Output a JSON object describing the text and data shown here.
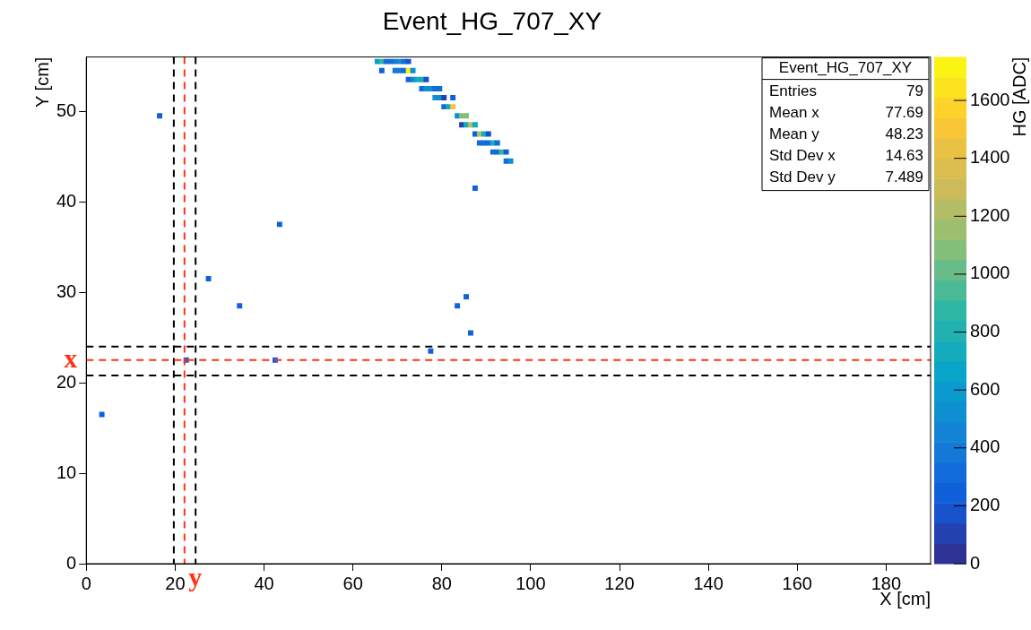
{
  "chart_data": {
    "type": "scatter",
    "title": "Event_HG_707_XY",
    "xlabel": "X [cm]",
    "ylabel": "Y [cm]",
    "clabel": "HG [ADC]",
    "xlim": [
      0,
      190
    ],
    "xticks": [
      0,
      20,
      40,
      60,
      80,
      100,
      120,
      140,
      160,
      180
    ],
    "ylim": [
      0,
      56
    ],
    "yticks": [
      0,
      10,
      20,
      30,
      40,
      50
    ],
    "clim": [
      0,
      1750
    ],
    "cticks": [
      0,
      200,
      400,
      600,
      800,
      1000,
      1200,
      1400,
      1600
    ],
    "grid": false,
    "legend": false,
    "marker": "square",
    "annotations": [
      "Event_HG_707_XY",
      "Entries 79",
      "Mean x 77.69",
      "Mean y 48.23",
      "Std Dev x 14.63",
      "Std Dev y 7.489"
    ],
    "ref_lines": [
      {
        "axis": "x",
        "value": 19.7,
        "label": null,
        "color": "#000000",
        "line_style": "dashed"
      },
      {
        "axis": "x",
        "value": 22.1,
        "label": "y",
        "color": "#ff3311",
        "line_style": "dashed"
      },
      {
        "axis": "x",
        "value": 24.6,
        "label": null,
        "color": "#000000",
        "line_style": "dashed"
      },
      {
        "axis": "y",
        "value": 24.0,
        "label": null,
        "color": "#000000",
        "line_style": "dashed"
      },
      {
        "axis": "y",
        "value": 22.5,
        "label": "x",
        "color": "#ff3311",
        "line_style": "dashed"
      },
      {
        "axis": "y",
        "value": 20.8,
        "label": null,
        "color": "#000000",
        "line_style": "dashed"
      }
    ],
    "x": [
      16.5,
      87.5,
      43.5,
      27.5,
      34.5,
      83.5,
      85.5,
      86.5,
      77.5,
      22.5,
      42.5,
      3.5,
      65.5,
      66.5,
      67.5,
      68.5,
      69.5,
      70.5,
      71.5,
      72.5,
      66.5,
      69.5,
      70.5,
      71.5,
      72.5,
      73.5,
      72.5,
      73.5,
      74.5,
      75.5,
      76.5,
      75.5,
      76.5,
      77.5,
      78.5,
      79.5,
      78.5,
      79.5,
      80.5,
      82.5,
      80.5,
      81.5,
      82.5,
      83.5,
      84.5,
      85.5,
      84.5,
      85.5,
      86.5,
      87.5,
      87.5,
      88.5,
      89.5,
      90.5,
      88.5,
      89.5,
      90.5,
      91.5,
      92.5,
      91.5,
      92.5,
      93.5,
      94.5,
      94.5,
      95.5
    ],
    "values": [
      49.5,
      41.5,
      37.5,
      31.5,
      28.5,
      28.5,
      29.5,
      25.5,
      23.5,
      22.5,
      22.5,
      16.5,
      55.5,
      55.5,
      55.5,
      55.5,
      55.5,
      55.5,
      55.5,
      55.5,
      54.5,
      54.5,
      54.5,
      54.5,
      54.5,
      54.5,
      53.5,
      53.5,
      53.5,
      53.5,
      53.5,
      52.5,
      52.5,
      52.5,
      52.5,
      52.5,
      51.5,
      51.5,
      51.5,
      51.5,
      50.5,
      50.5,
      50.5,
      49.5,
      49.5,
      49.5,
      48.5,
      48.5,
      48.5,
      48.5,
      47.5,
      47.5,
      47.5,
      47.5,
      46.5,
      46.5,
      46.5,
      46.5,
      46.5,
      45.5,
      45.5,
      45.5,
      45.5,
      44.5,
      44.5
    ],
    "cvalues": [
      250,
      250,
      250,
      250,
      250,
      250,
      250,
      250,
      250,
      250,
      250,
      250,
      600,
      900,
      300,
      300,
      400,
      500,
      300,
      200,
      250,
      400,
      400,
      300,
      1700,
      550,
      250,
      450,
      750,
      700,
      200,
      300,
      500,
      500,
      300,
      300,
      500,
      500,
      100,
      250,
      300,
      750,
      1500,
      550,
      1100,
      1100,
      100,
      700,
      1250,
      750,
      250,
      1250,
      750,
      200,
      300,
      300,
      300,
      750,
      300,
      300,
      300,
      900,
      250,
      300,
      500
    ]
  }
}
